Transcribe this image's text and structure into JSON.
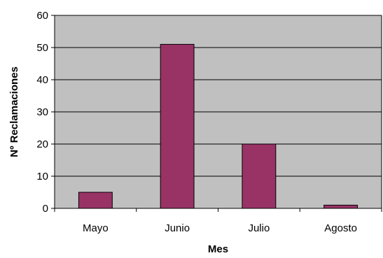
{
  "chart_data": {
    "type": "bar",
    "categories": [
      "Mayo",
      "Junio",
      "Julio",
      "Agosto"
    ],
    "series": [
      {
        "values": [
          5,
          51,
          20,
          1
        ]
      }
    ],
    "title": "",
    "xlabel": "Mes",
    "ylabel": "Nº Reclamaciones",
    "ylim": [
      0,
      60
    ],
    "yticks": [
      "0",
      "10",
      "20",
      "30",
      "40",
      "50",
      "60"
    ],
    "grid": true,
    "legend": "none",
    "colors": {
      "bar": "#993366",
      "plot_background": "#c0c0c0",
      "gridline": "#000000"
    }
  }
}
